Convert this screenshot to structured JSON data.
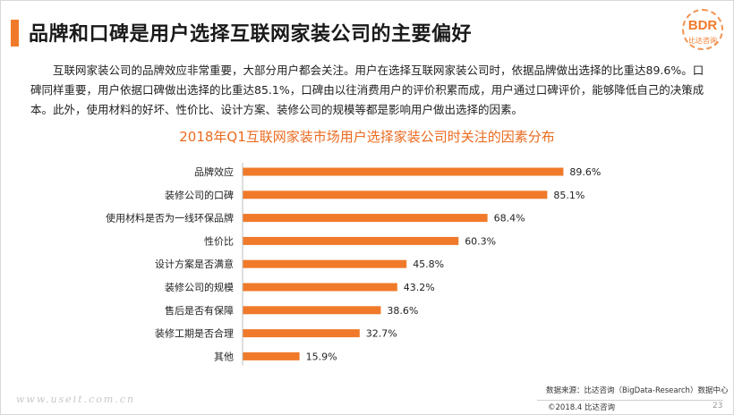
{
  "header": {
    "title": "品牌和口碑是用户选择互联网家装公司的主要偏好",
    "logo_text": "BDR",
    "logo_sub": "比达咨询"
  },
  "body": {
    "paragraph": "互联网家装公司的品牌效应非常重要，大部分用户都会关注。用户在选择互联网家装公司时，依据品牌做出选择的比重达89.6%。口碑同样重要，用户依据口碑做出选择的比重达85.1%，口碑由以往消费用户的评价积累而成，用户通过口碑评价，能够降低自己的决策成本。此外，使用材料的好坏、性价比、设计方案、装修公司的规模等都是影响用户做出选择的因素。"
  },
  "chart_data": {
    "type": "bar",
    "orientation": "horizontal",
    "title": "2018年Q1互联网家装市场用户选择家装公司时关注的因素分布",
    "categories": [
      "品牌效应",
      "装修公司的口碑",
      "使用材料是否为一线环保品牌",
      "性价比",
      "设计方案是否满意",
      "装修公司的规模",
      "售后是否有保障",
      "装修工期是否合理",
      "其他"
    ],
    "values": [
      89.6,
      85.1,
      68.4,
      60.3,
      45.8,
      43.2,
      38.6,
      32.7,
      15.9
    ],
    "value_labels": [
      "89.6%",
      "85.1%",
      "68.4%",
      "60.3%",
      "45.8%",
      "43.2%",
      "38.6%",
      "32.7%",
      "15.9%"
    ],
    "xlim": [
      0,
      100
    ],
    "grid": false,
    "bar_color": "#f07a2a"
  },
  "footer": {
    "source": "数据来源：比达咨询（BigData-Research）数据中心",
    "copyright": "©2018.4  比达咨询",
    "page_number": "23",
    "watermark": "www.useit.com.cn"
  },
  "colors": {
    "accent": "#f07a2a",
    "chart_title": "#ea6b1f"
  }
}
